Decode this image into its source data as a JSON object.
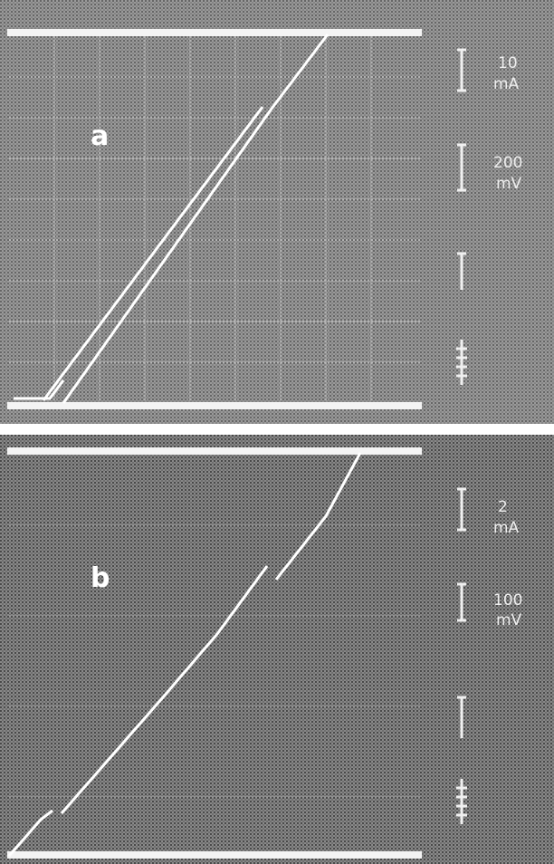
{
  "panels": [
    {
      "label": "a",
      "scales": [
        {
          "value": "10",
          "unit": "mA"
        },
        {
          "value": "200",
          "unit": "mV"
        }
      ]
    },
    {
      "label": "b",
      "scales": [
        {
          "value": "2",
          "unit": "mA"
        },
        {
          "value": "100",
          "unit": "mV"
        }
      ]
    }
  ]
}
